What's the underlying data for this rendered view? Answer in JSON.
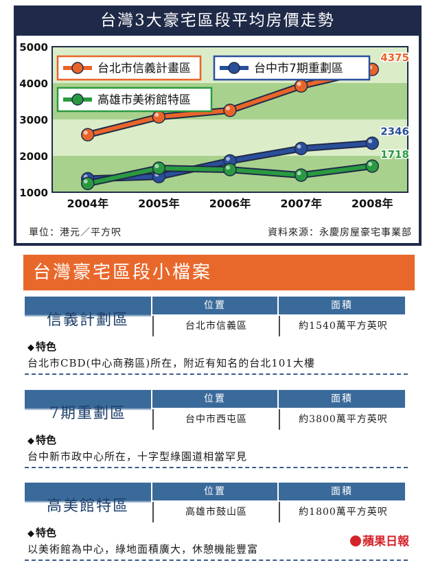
{
  "header": {
    "title": "台灣3大豪宅區段平均房價走勢"
  },
  "chart_data": {
    "type": "line",
    "title": "台灣3大豪宅區段平均房價走勢",
    "categories": [
      "2004年",
      "2005年",
      "2006年",
      "2007年",
      "2008年"
    ],
    "ylim": [
      1000,
      5000
    ],
    "yticks": [
      "1000",
      "2000",
      "3000",
      "4000",
      "5000"
    ],
    "grid": "horizontal bands",
    "legend": "top",
    "series": [
      {
        "name": "台北市信義計畫區",
        "color": "#e8652a",
        "values": [
          2580,
          3070,
          3250,
          3920,
          4375
        ],
        "end_label": "4375"
      },
      {
        "name": "台中市7期重劃區",
        "color": "#2a4f9a",
        "values": [
          1370,
          1430,
          1860,
          2200,
          2346
        ],
        "end_label": "2346"
      },
      {
        "name": "高雄市美術館特區",
        "color": "#2a9a40",
        "values": [
          1240,
          1660,
          1620,
          1470,
          1718
        ],
        "end_label": "1718"
      }
    ]
  },
  "footnotes": {
    "unit": "單位：港元／平方呎",
    "source": "資料來源：永慶房屋豪宅事業部"
  },
  "profile": {
    "banner": "台灣豪宅區段小檔案",
    "position_header": "位置",
    "area_header": "面積",
    "feature_label": "特色",
    "districts": [
      {
        "name": "信義計劃區",
        "position": "台北市信義區",
        "area": "約1540萬平方英呎",
        "feature": "台北市CBD(中心商務區)所在，附近有知名的台北101大樓"
      },
      {
        "name": "7期重劃區",
        "position": "台中市西屯區",
        "area": "約3800萬平方英呎",
        "feature": "台中新市政中心所在，十字型綠園道相當罕見"
      },
      {
        "name": "高美館特區",
        "position": "高雄市鼓山區",
        "area": "約1800萬平方英呎",
        "feature": "以美術館為中心，綠地面積廣大，休憩機能豐富"
      }
    ]
  },
  "logo": {
    "text": "蘋果日報"
  }
}
